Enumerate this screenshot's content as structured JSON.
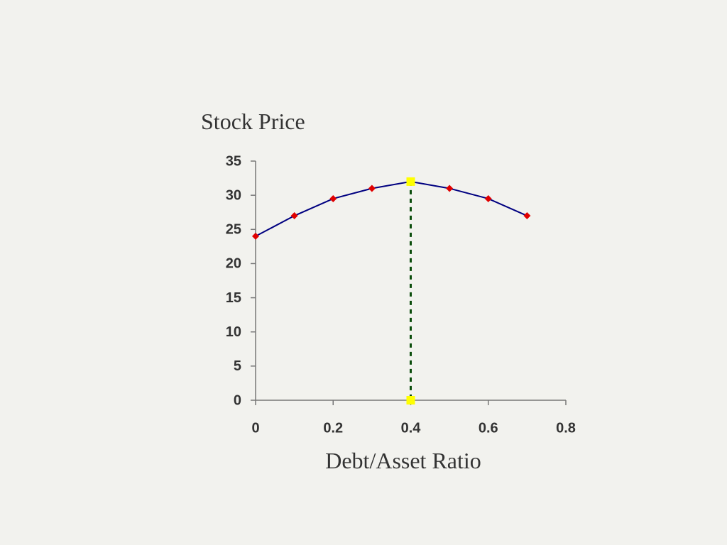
{
  "chart_data": {
    "type": "line",
    "y_label": "Stock Price",
    "x_label": "Debt/Asset Ratio",
    "xlim": [
      0,
      0.8
    ],
    "xticks": [
      0,
      0.2,
      0.4,
      0.6,
      0.8
    ],
    "ylim": [
      0,
      35
    ],
    "yticks": [
      0,
      5,
      10,
      15,
      20,
      25,
      30,
      35
    ],
    "series": [
      {
        "color": "#000080",
        "marker_color": "#e00000",
        "marker": "diamond",
        "dashed": false,
        "x": [
          0,
          0.1,
          0.2,
          0.3,
          0.4,
          0.5,
          0.6,
          0.7
        ],
        "values": [
          24,
          27,
          29.5,
          31,
          32,
          31,
          29.5,
          27
        ]
      },
      {
        "color": "#0b4d0b",
        "marker_color": "#ffff00",
        "marker": "square",
        "dashed": true,
        "x": [
          0.4,
          0.4
        ],
        "values": [
          32,
          0
        ]
      }
    ]
  }
}
